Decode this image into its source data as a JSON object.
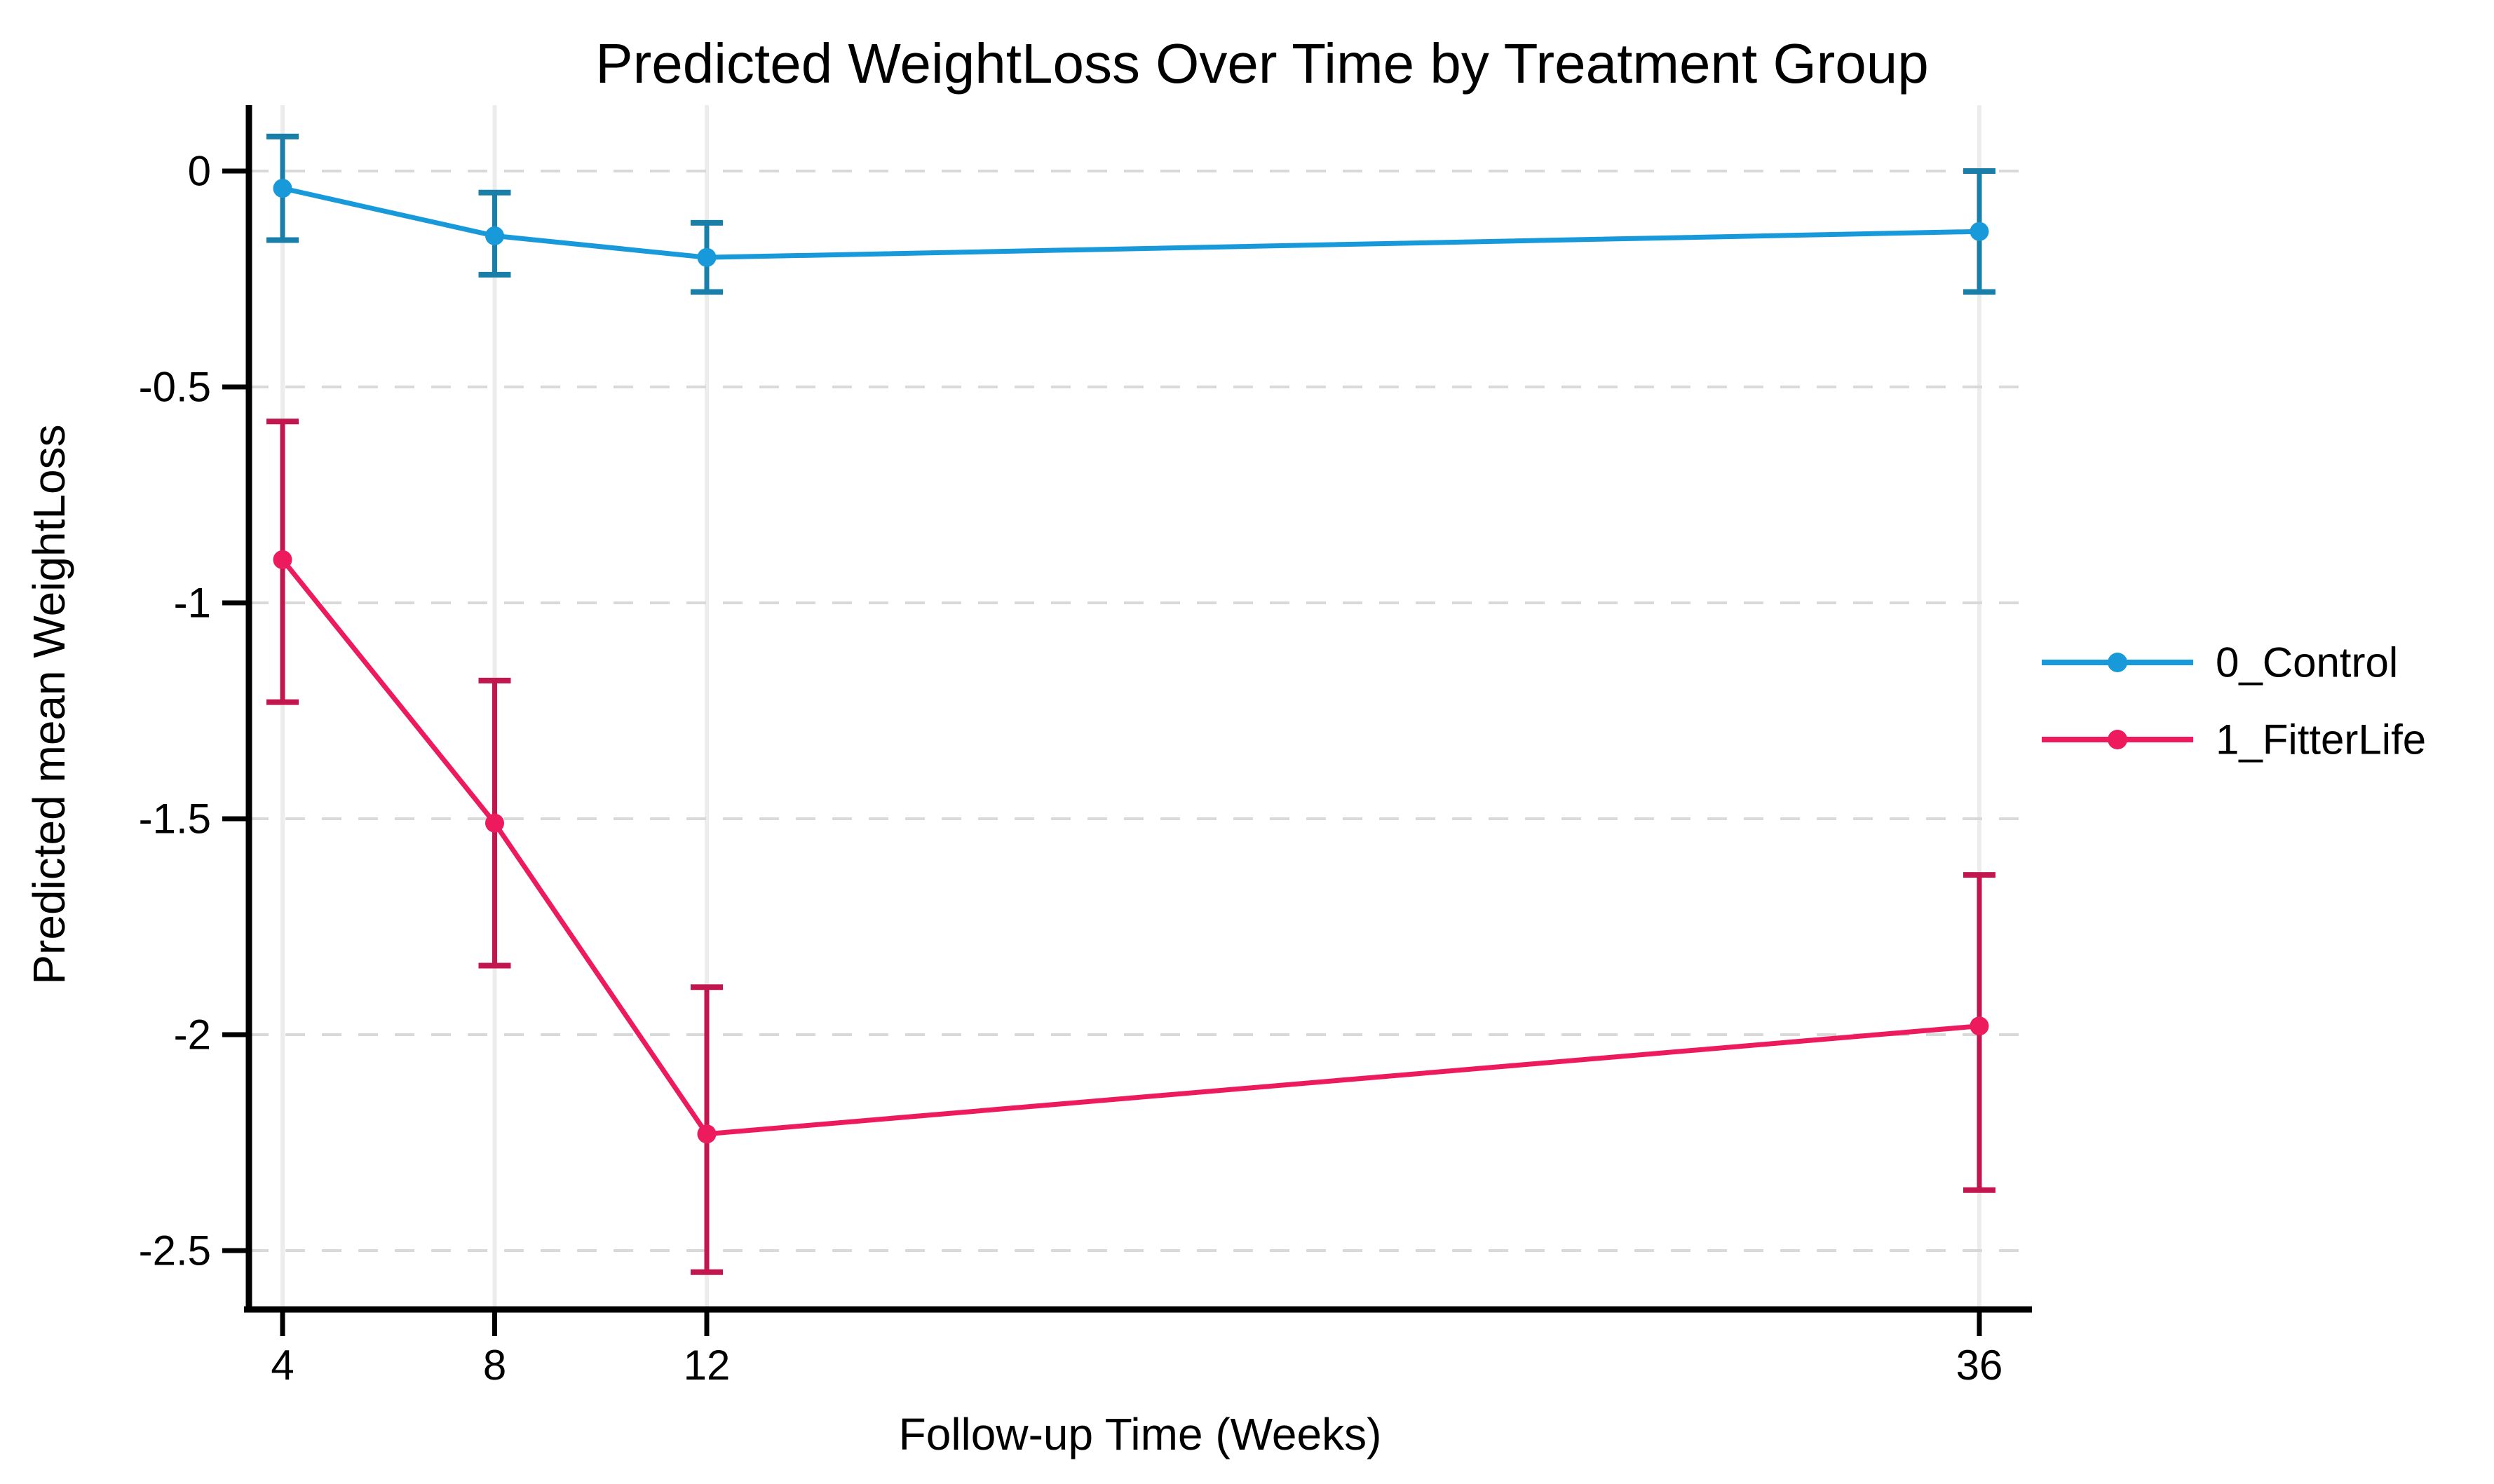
{
  "chart_data": {
    "type": "line",
    "title": "Predicted WeightLoss Over Time by Treatment Group",
    "xlabel": "Follow-up Time (Weeks)",
    "ylabel": "Predicted mean WeightLoss",
    "x": [
      4,
      8,
      12,
      36
    ],
    "x_tick_labels": [
      "4",
      "8",
      "12",
      "36"
    ],
    "y_ticks": [
      0,
      -0.5,
      -1,
      -1.5,
      -2,
      -2.5
    ],
    "y_tick_labels": [
      "0",
      "-0.5",
      "-1",
      "-1.5",
      "-2",
      "-2.5"
    ],
    "xlim": [
      3.35,
      37.0
    ],
    "ylim": [
      -2.64,
      0.155
    ],
    "grid": "on",
    "legend_position": "right",
    "series": [
      {
        "name": "0_Control",
        "color": "#189ada",
        "ci_color": "#1a7fa8",
        "values": [
          -0.04,
          -0.15,
          -0.2,
          -0.14
        ],
        "ci_high": [
          0.08,
          -0.05,
          -0.12,
          0.0
        ],
        "ci_low": [
          -0.16,
          -0.24,
          -0.28,
          -0.28
        ]
      },
      {
        "name": "1_FitterLife",
        "color": "#ee1a5e",
        "ci_color": "#c2164f",
        "values": [
          -0.9,
          -1.51,
          -2.23,
          -1.98
        ],
        "ci_high": [
          -0.58,
          -1.18,
          -1.89,
          -1.63
        ],
        "ci_low": [
          -1.23,
          -1.84,
          -2.55,
          -2.36
        ]
      }
    ],
    "colors": {
      "background": "#ffffff",
      "axis": "#000000",
      "text": "#000000",
      "h_gridline": "#d9d9d9",
      "v_gridline": "#ececec"
    }
  }
}
